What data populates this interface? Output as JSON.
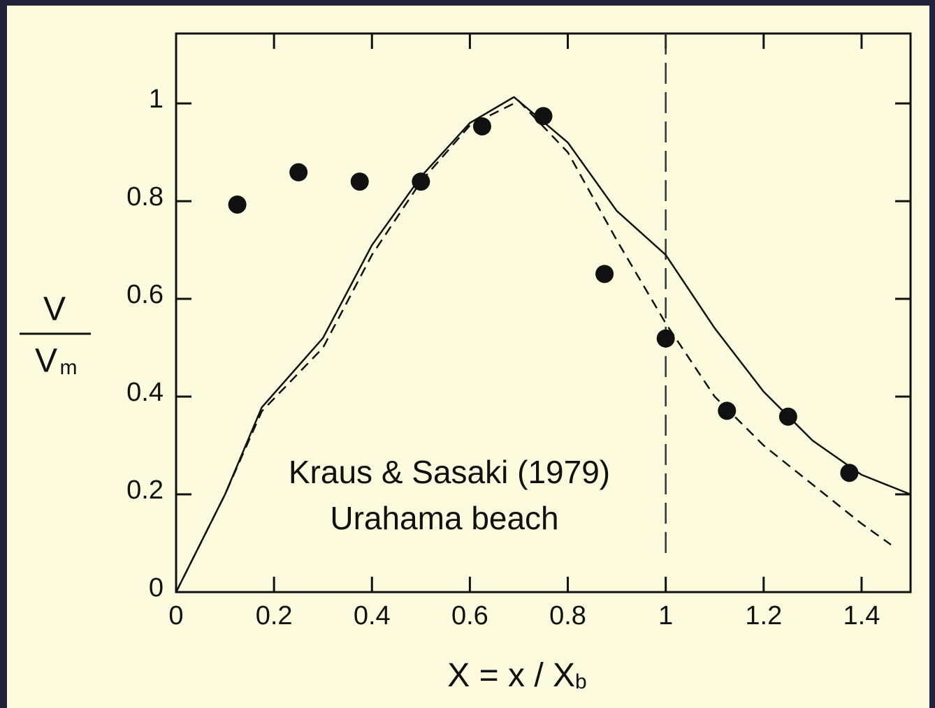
{
  "chart_data": {
    "type": "line",
    "annotation": [
      "Kraus & Sasaki (1979)",
      "Urahama beach"
    ],
    "xlabel": {
      "main": "X = x / X",
      "sub": "b"
    },
    "ylabel": {
      "numerator": "V",
      "denominator": "V",
      "denominator_sub": "m"
    },
    "xlim": [
      0,
      1.5
    ],
    "ylim": [
      0,
      1.143
    ],
    "xticks": [
      0,
      0.2,
      0.4,
      0.6,
      0.8,
      1,
      1.2,
      1.4
    ],
    "yticks": [
      0,
      0.2,
      0.4,
      0.6,
      0.8,
      1
    ],
    "vline": 1,
    "series": [
      {
        "style": "markers",
        "color": "#111111",
        "x": [
          0.125,
          0.25,
          0.375,
          0.5,
          0.625,
          0.75,
          0.875,
          1.0,
          1.125,
          1.25,
          1.375
        ],
        "values": [
          0.793,
          0.859,
          0.84,
          0.84,
          0.953,
          0.974,
          0.651,
          0.519,
          0.371,
          0.359,
          0.244
        ]
      },
      {
        "style": "solid",
        "color": "#111111",
        "x": [
          0,
          0.05,
          0.1,
          0.175,
          0.3,
          0.4,
          0.5,
          0.6,
          0.69,
          0.8,
          0.9,
          1.0,
          1.1,
          1.2,
          1.3,
          1.4,
          1.5
        ],
        "values": [
          0,
          0.1,
          0.2,
          0.378,
          0.52,
          0.71,
          0.85,
          0.96,
          1.013,
          0.92,
          0.78,
          0.69,
          0.54,
          0.41,
          0.31,
          0.24,
          0.2
        ]
      },
      {
        "style": "dashed",
        "color": "#111111",
        "x": [
          0,
          0.05,
          0.1,
          0.175,
          0.3,
          0.4,
          0.5,
          0.6,
          0.7,
          0.8,
          0.9,
          1.0,
          1.1,
          1.2,
          1.3,
          1.4,
          1.46
        ],
        "values": [
          0,
          0.1,
          0.2,
          0.37,
          0.5,
          0.69,
          0.84,
          0.955,
          1.005,
          0.9,
          0.72,
          0.55,
          0.4,
          0.3,
          0.22,
          0.14,
          0.097
        ]
      }
    ]
  }
}
